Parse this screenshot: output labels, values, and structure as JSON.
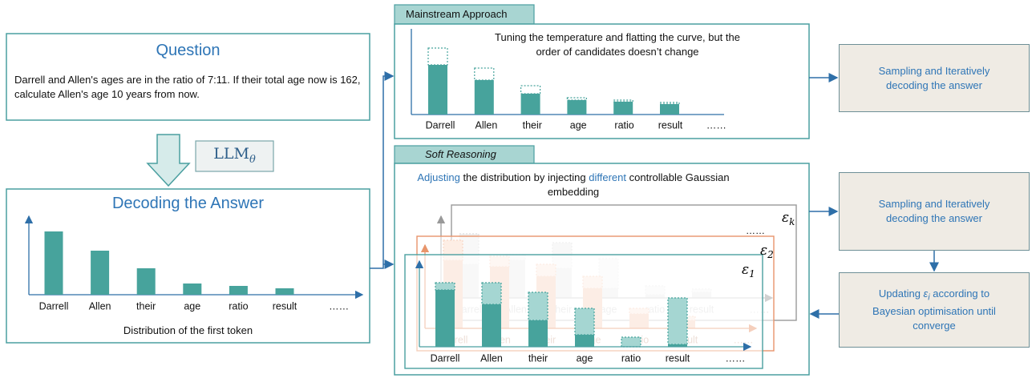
{
  "question": {
    "title": "Question",
    "text": "Darrell and Allen's ages are in the ratio of 7:11. If their total age now is 162, calculate Allen's age 10 years from now."
  },
  "model": {
    "name": "LLM",
    "subscript": "θ"
  },
  "decoding": {
    "title": "Decoding the Answer",
    "caption": "Distribution of the first token"
  },
  "tokens": [
    "Darrell",
    "Allen",
    "their",
    "age",
    "ratio",
    "result",
    "……"
  ],
  "mainstream": {
    "title": "Mainstream Approach",
    "note": "Tuning the temperature and flatting the curve, but the order of candidates doesn’t change"
  },
  "soft": {
    "title": "Soft Reasoning",
    "note_parts": [
      "Adjusting",
      " the distribution by injecting ",
      "different",
      " controllable Gaussian embedding"
    ],
    "layers": [
      {
        "symbol": "ε",
        "subscript": "k"
      },
      {
        "symbol": "ε",
        "subscript": "2"
      },
      {
        "symbol": "ε",
        "subscript": "1"
      }
    ],
    "more": "……"
  },
  "side": {
    "sampling_1": "Sampling and Iteratively decoding the answer",
    "sampling_2": "Sampling and Iteratively decoding the answer",
    "updating": [
      "Updating ",
      "ε",
      "i",
      " according to Bayesian optimisation until converge"
    ]
  }
}
